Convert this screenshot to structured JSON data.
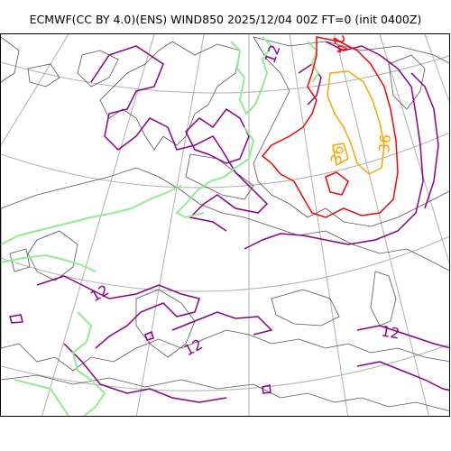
{
  "header": {
    "title": "ECMWF(CC BY 4.0)(ENS) WIND850 2025/12/04 00Z FT=0 (init 0400Z)"
  },
  "map": {
    "type": "contour_map",
    "colors": {
      "coastline": "#555555",
      "graticule": "#b0b0b0",
      "contour_12": "#8b008b",
      "contour_green": "#90ee90",
      "contour_24": "#ff0000",
      "contour_36": "#ffa500",
      "frame": "#000000"
    },
    "contour_labels": [
      {
        "text": "12",
        "color": "#8b008b"
      },
      {
        "text": "12",
        "color": "#8b008b"
      },
      {
        "text": "12",
        "color": "#8b008b"
      },
      {
        "text": "12",
        "color": "#8b008b"
      },
      {
        "text": "24",
        "color": "#ff0000"
      },
      {
        "text": "36",
        "color": "#ffa500"
      },
      {
        "text": "36",
        "color": "#ffa500"
      }
    ]
  }
}
